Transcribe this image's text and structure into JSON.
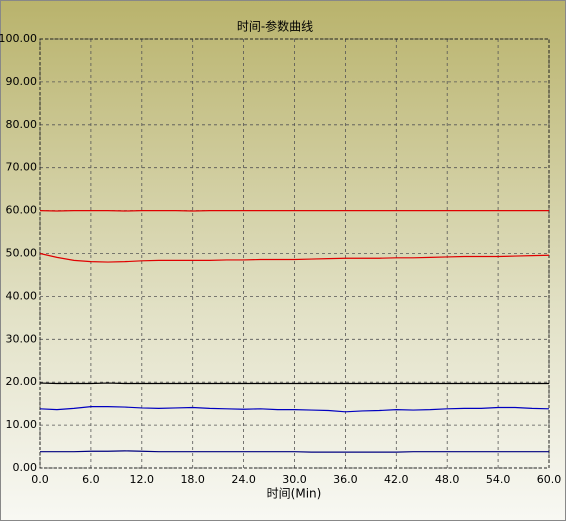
{
  "chart_data": {
    "type": "line",
    "title": "时间-参数曲线",
    "x_label": "时间(Min)",
    "x": [
      0,
      2,
      4,
      6,
      8,
      10,
      12,
      14,
      16,
      18,
      20,
      22,
      24,
      26,
      28,
      30,
      32,
      34,
      36,
      38,
      40,
      42,
      44,
      46,
      48,
      50,
      52,
      54,
      56,
      58,
      60
    ],
    "series": [
      {
        "color": "#e00000",
        "values": [
          60,
          59.9,
          60,
          60,
          60,
          59.9,
          60,
          60,
          60,
          59.9,
          60,
          60,
          60,
          60,
          60,
          60,
          60,
          60,
          60,
          60,
          60,
          60,
          60,
          60,
          60,
          60,
          60,
          60,
          60,
          60,
          60
        ]
      },
      {
        "color": "#e00000",
        "values": [
          50,
          49.1,
          48.4,
          48.1,
          48,
          48.1,
          48.3,
          48.4,
          48.4,
          48.4,
          48.4,
          48.5,
          48.5,
          48.6,
          48.6,
          48.6,
          48.7,
          48.8,
          48.9,
          48.9,
          48.9,
          49,
          49,
          49.1,
          49.2,
          49.3,
          49.3,
          49.3,
          49.4,
          49.5,
          49.6
        ]
      },
      {
        "color": "#000000",
        "values": [
          19.8,
          19.7,
          19.7,
          19.7,
          19.8,
          19.7,
          19.7,
          19.7,
          19.7,
          19.7,
          19.7,
          19.7,
          19.7,
          19.7,
          19.7,
          19.7,
          19.7,
          19.7,
          19.7,
          19.7,
          19.7,
          19.7,
          19.7,
          19.7,
          19.7,
          19.7,
          19.7,
          19.7,
          19.7,
          19.7,
          19.7
        ]
      },
      {
        "color": "#0000c0",
        "values": [
          13.8,
          13.6,
          13.9,
          14.3,
          14.3,
          14.2,
          14,
          13.9,
          14,
          14.1,
          13.9,
          13.8,
          13.7,
          13.8,
          13.6,
          13.6,
          13.5,
          13.4,
          13.1,
          13.3,
          13.4,
          13.6,
          13.5,
          13.6,
          13.8,
          13.9,
          13.9,
          14.1,
          14.1,
          13.9,
          13.8
        ]
      },
      {
        "color": "#000080",
        "values": [
          3.8,
          3.8,
          3.8,
          3.9,
          3.9,
          4,
          3.9,
          3.8,
          3.8,
          3.8,
          3.8,
          3.8,
          3.8,
          3.8,
          3.8,
          3.8,
          3.7,
          3.7,
          3.7,
          3.7,
          3.7,
          3.7,
          3.8,
          3.8,
          3.8,
          3.8,
          3.8,
          3.8,
          3.8,
          3.8,
          3.8
        ]
      }
    ],
    "xlim": [
      0,
      60
    ],
    "ylim": [
      0,
      100
    ],
    "xticks": [
      {
        "value": 0,
        "label": "0.0"
      },
      {
        "value": 6,
        "label": "6.0"
      },
      {
        "value": 12,
        "label": "12.0"
      },
      {
        "value": 18,
        "label": "18.0"
      },
      {
        "value": 24,
        "label": "24.0"
      },
      {
        "value": 30,
        "label": "30.0"
      },
      {
        "value": 36,
        "label": "36.0"
      },
      {
        "value": 42,
        "label": "42.0"
      },
      {
        "value": 48,
        "label": "48.0"
      },
      {
        "value": 54,
        "label": "54.0"
      },
      {
        "value": 60,
        "label": "60.0"
      }
    ],
    "yticks": [
      {
        "value": 0,
        "label": "0.00"
      },
      {
        "value": 10,
        "label": "10.00"
      },
      {
        "value": 20,
        "label": "20.00"
      },
      {
        "value": 30,
        "label": "30.00"
      },
      {
        "value": 40,
        "label": "40.00"
      },
      {
        "value": 50,
        "label": "50.00"
      },
      {
        "value": 60,
        "label": "60.00"
      },
      {
        "value": 70,
        "label": "70.00"
      },
      {
        "value": 80,
        "label": "80.00"
      },
      {
        "value": 90,
        "label": "90.00"
      },
      {
        "value": 100,
        "label": "100.00"
      }
    ],
    "grid": true
  }
}
